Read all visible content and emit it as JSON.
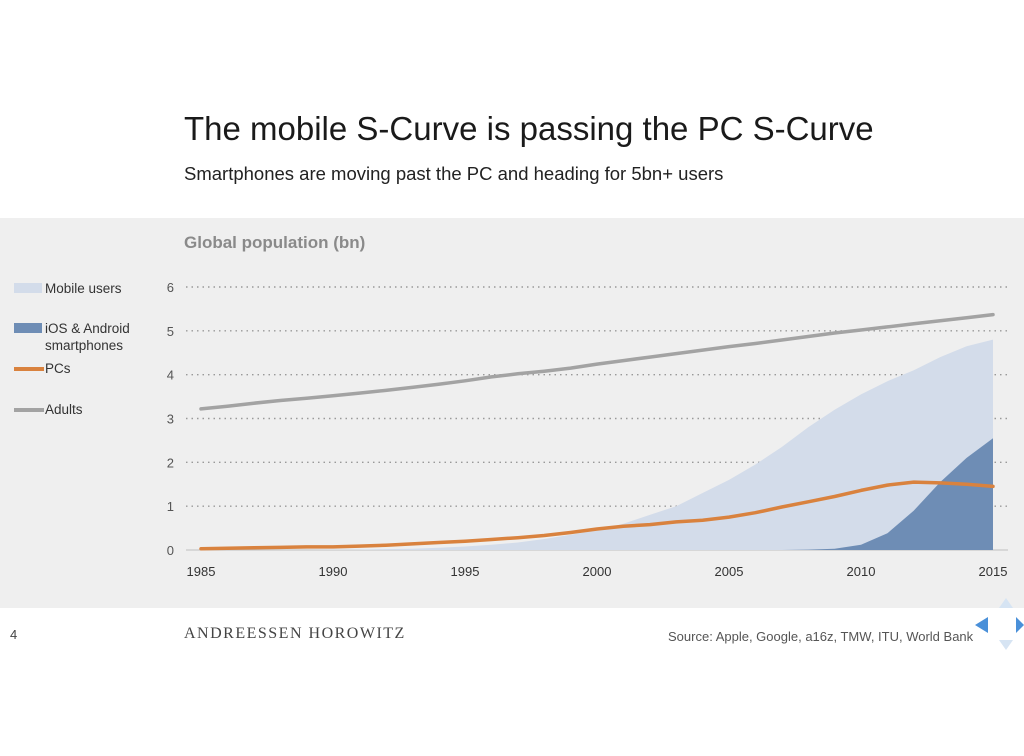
{
  "slide": {
    "title": "The mobile S-Curve is passing the PC S-Curve",
    "subtitle": "Smartphones are moving past the PC and heading for 5bn+ users",
    "page_number": "4",
    "brand": "ANDREESSEN HOROWITZ",
    "source": "Source: Apple, Google, a16z, TMW, ITU, World Bank"
  },
  "colors": {
    "mobile_users": "#d3dcea",
    "smartphones": "#6e8db5",
    "pcs": "#d9823e",
    "adults": "#a3a3a3",
    "panel_bg": "#efefef",
    "grid": "#999999",
    "nav_arrow": "#4a90d9"
  },
  "legend": [
    {
      "label": "Mobile users",
      "type": "area",
      "color_key": "mobile_users"
    },
    {
      "label": "iOS & Android smartphones",
      "type": "area",
      "color_key": "smartphones"
    },
    {
      "label": "PCs",
      "type": "line",
      "color_key": "pcs"
    },
    {
      "label": "Adults",
      "type": "line",
      "color_key": "adults"
    }
  ],
  "chart_data": {
    "type": "area",
    "title": "Global population (bn)",
    "xlabel": "",
    "ylabel": "",
    "xlim": [
      1985,
      2015
    ],
    "ylim": [
      0,
      6
    ],
    "x_ticks": [
      1985,
      1990,
      1995,
      2000,
      2005,
      2010,
      2015
    ],
    "y_ticks": [
      0,
      1,
      2,
      3,
      4,
      5,
      6
    ],
    "grid": "horizontal dotted",
    "legend_position": "left",
    "x": [
      1985,
      1986,
      1987,
      1988,
      1989,
      1990,
      1991,
      1992,
      1993,
      1994,
      1995,
      1996,
      1997,
      1998,
      1999,
      2000,
      2001,
      2002,
      2003,
      2004,
      2005,
      2006,
      2007,
      2008,
      2009,
      2010,
      2011,
      2012,
      2013,
      2014,
      2015
    ],
    "series": [
      {
        "name": "Mobile users",
        "type": "area",
        "values": [
          0.0,
          0.0,
          0.0,
          0.0,
          0.0,
          0.01,
          0.01,
          0.02,
          0.03,
          0.05,
          0.08,
          0.12,
          0.17,
          0.25,
          0.35,
          0.45,
          0.6,
          0.8,
          1.0,
          1.3,
          1.6,
          1.95,
          2.35,
          2.8,
          3.2,
          3.55,
          3.85,
          4.1,
          4.4,
          4.65,
          4.8
        ]
      },
      {
        "name": "iOS & Android smartphones",
        "type": "area",
        "values": [
          0,
          0,
          0,
          0,
          0,
          0,
          0,
          0,
          0,
          0,
          0,
          0,
          0,
          0,
          0,
          0,
          0,
          0,
          0,
          0,
          0,
          0,
          0,
          0.01,
          0.03,
          0.12,
          0.38,
          0.9,
          1.55,
          2.1,
          2.55
        ]
      },
      {
        "name": "PCs",
        "type": "line",
        "values": [
          0.03,
          0.04,
          0.05,
          0.06,
          0.07,
          0.07,
          0.09,
          0.11,
          0.14,
          0.17,
          0.2,
          0.24,
          0.28,
          0.33,
          0.4,
          0.48,
          0.54,
          0.58,
          0.64,
          0.68,
          0.75,
          0.85,
          0.98,
          1.1,
          1.22,
          1.36,
          1.48,
          1.55,
          1.53,
          1.5,
          1.45
        ]
      },
      {
        "name": "Adults",
        "type": "line",
        "values": [
          3.22,
          3.28,
          3.35,
          3.41,
          3.46,
          3.52,
          3.58,
          3.64,
          3.71,
          3.78,
          3.86,
          3.95,
          4.02,
          4.08,
          4.15,
          4.24,
          4.32,
          4.4,
          4.48,
          4.56,
          4.64,
          4.71,
          4.79,
          4.87,
          4.95,
          5.02,
          5.09,
          5.16,
          5.23,
          5.3,
          5.37
        ]
      }
    ]
  }
}
